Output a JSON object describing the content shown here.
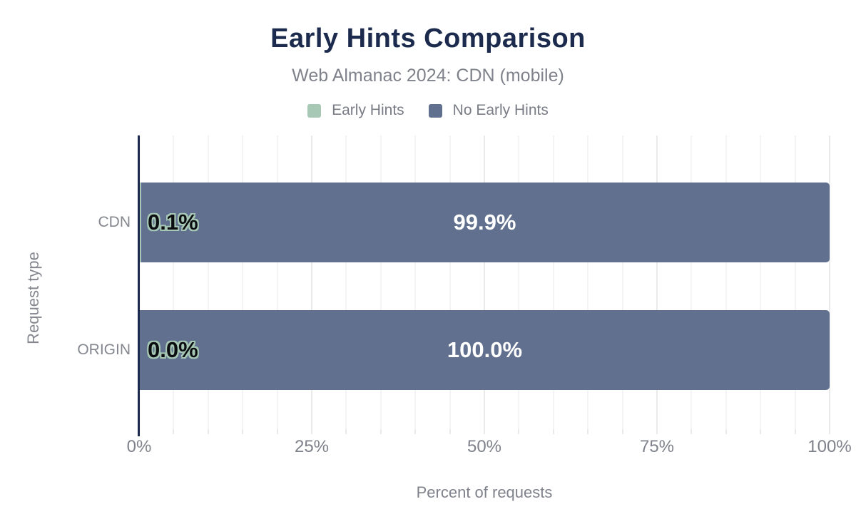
{
  "header": {
    "title": "Early Hints Comparison",
    "subtitle": "Web Almanac 2024: CDN (mobile)"
  },
  "legend": {
    "items": [
      {
        "label": "Early Hints",
        "color": "#a6c8b5"
      },
      {
        "label": "No Early Hints",
        "color": "#60708e"
      }
    ]
  },
  "colors": {
    "title_navy": "#1c2b4d",
    "axis_line": "#1c2b4d",
    "early_hints_green": "#a6c8b5",
    "no_early_hints_blue": "#60708e",
    "secondary_text": "#7f828b",
    "grid_minor": "#f4f4f5",
    "grid_major": "#e9eaec"
  },
  "chart_data": {
    "type": "bar",
    "orientation": "horizontal",
    "stacked": true,
    "title": "Early Hints Comparison",
    "subtitle": "Web Almanac 2024: CDN (mobile)",
    "categories": [
      "CDN",
      "ORIGIN"
    ],
    "series": [
      {
        "name": "Early Hints",
        "color": "#a6c8b5",
        "values": [
          0.1,
          0.0
        ]
      },
      {
        "name": "No Early Hints",
        "color": "#60708e",
        "values": [
          99.9,
          100.0
        ]
      }
    ],
    "value_labels": [
      [
        "0.1%",
        "99.9%"
      ],
      [
        "0.0%",
        "100.0%"
      ]
    ],
    "xlabel": "Percent of requests",
    "ylabel": "Request type",
    "xlim": [
      0,
      100
    ],
    "xticks": [
      "0%",
      "25%",
      "50%",
      "75%",
      "100%"
    ],
    "xtick_positions": [
      0,
      25,
      50,
      75,
      100
    ],
    "minor_grid_step": 5,
    "grid": true,
    "legend_position": "top"
  }
}
